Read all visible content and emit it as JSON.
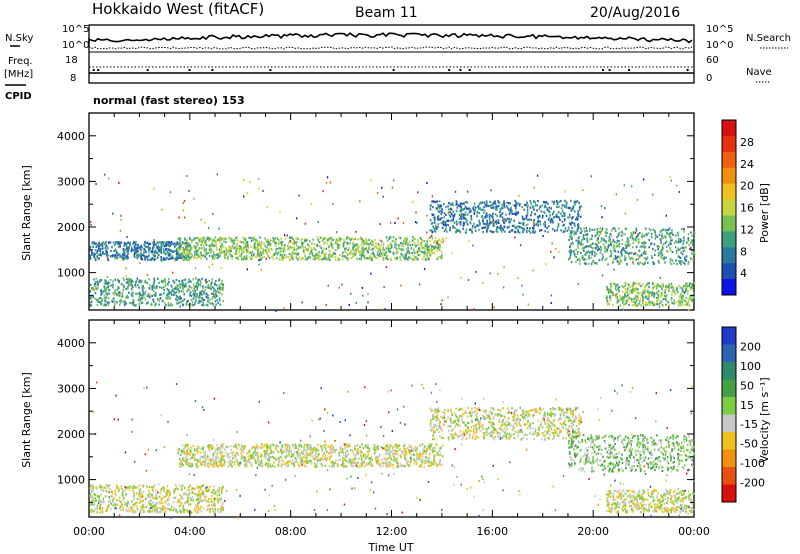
{
  "header": {
    "radar": "Hokkaido West (fitACF)",
    "beam": "Beam 11",
    "date": "20/Aug/2016"
  },
  "top_panel": {
    "left_label_nsky": "N.Sky",
    "left_label_freq": "Freq.",
    "left_label_freq_unit": "[MHz]",
    "left_label_cpid": "CPID",
    "nsky_ticks": [
      "10^5",
      "10^0"
    ],
    "freq_ticks": [
      "18",
      "8"
    ],
    "right_label_nsearch": "N.Search",
    "right_label_nave": "Nave",
    "nsearch_ticks": [
      "10^5",
      "10^0"
    ],
    "nave_ticks": [
      "60",
      "0"
    ],
    "cpid_text": "normal (fast stereo) 153"
  },
  "chart_data": [
    {
      "type": "heatmap",
      "title": "",
      "xlabel": "",
      "ylabel": "Slant Range [km]",
      "xlim": [
        "00:00",
        "00:00"
      ],
      "ylim": [
        180,
        4500
      ],
      "yticks": [
        "1000",
        "2000",
        "3000",
        "4000"
      ],
      "xticks": [
        "00:00",
        "04:00",
        "08:00",
        "12:00",
        "16:00",
        "20:00",
        "00:00"
      ],
      "colorbar": {
        "label": "Power [dB]",
        "ticks": [
          "4",
          "8",
          "12",
          "16",
          "20",
          "24",
          "28"
        ],
        "colors": [
          "#0a14e6",
          "#1e50b4",
          "#2a7aa0",
          "#3aa080",
          "#78c050",
          "#c8d440",
          "#f0c020",
          "#f09010",
          "#f06010",
          "#e83010",
          "#d81010"
        ]
      },
      "bands": [
        {
          "t_start": 0.0,
          "t_end": 5.3,
          "range_lo": 300,
          "range_hi": 900,
          "level": 3
        },
        {
          "t_start": 0.0,
          "t_end": 4.0,
          "range_lo": 1300,
          "range_hi": 1700,
          "level": 2
        },
        {
          "t_start": 3.5,
          "t_end": 14.0,
          "range_lo": 1300,
          "range_hi": 1800,
          "level": 4
        },
        {
          "t_start": 13.5,
          "t_end": 19.5,
          "range_lo": 1900,
          "range_hi": 2600,
          "level": 2
        },
        {
          "t_start": 19.0,
          "t_end": 24.0,
          "range_lo": 1200,
          "range_hi": 2000,
          "level": 3
        },
        {
          "t_start": 20.5,
          "t_end": 24.0,
          "range_lo": 300,
          "range_hi": 800,
          "level": 4
        }
      ]
    },
    {
      "type": "heatmap",
      "title": "",
      "xlabel": "Time UT",
      "ylabel": "Slant Range [km]",
      "xlim": [
        "00:00",
        "00:00"
      ],
      "ylim": [
        180,
        4500
      ],
      "yticks": [
        "1000",
        "2000",
        "3000",
        "4000"
      ],
      "xticks": [
        "00:00",
        "04:00",
        "08:00",
        "12:00",
        "16:00",
        "20:00",
        "00:00"
      ],
      "colorbar": {
        "label": "Velocity [m s⁻¹]",
        "ticks": [
          "200",
          "100",
          "50",
          "15",
          "-15",
          "-50",
          "-100",
          "-200"
        ],
        "colors": [
          "#1e3cc8",
          "#2c64b4",
          "#2e8a6a",
          "#44a044",
          "#7ccc44",
          "#c8c8c8",
          "#f0c020",
          "#f09010",
          "#e85010",
          "#d81010"
        ]
      },
      "bands": [
        {
          "t_start": 0.0,
          "t_end": 5.3,
          "range_lo": 300,
          "range_hi": 900,
          "level": 5
        },
        {
          "t_start": 3.5,
          "t_end": 14.0,
          "range_lo": 1300,
          "range_hi": 1800,
          "level": 5
        },
        {
          "t_start": 13.5,
          "t_end": 19.5,
          "range_lo": 1900,
          "range_hi": 2600,
          "level": 5
        },
        {
          "t_start": 19.0,
          "t_end": 24.0,
          "range_lo": 1200,
          "range_hi": 2000,
          "level": 4
        },
        {
          "t_start": 20.5,
          "t_end": 24.0,
          "range_lo": 300,
          "range_hi": 800,
          "level": 5
        }
      ]
    }
  ]
}
